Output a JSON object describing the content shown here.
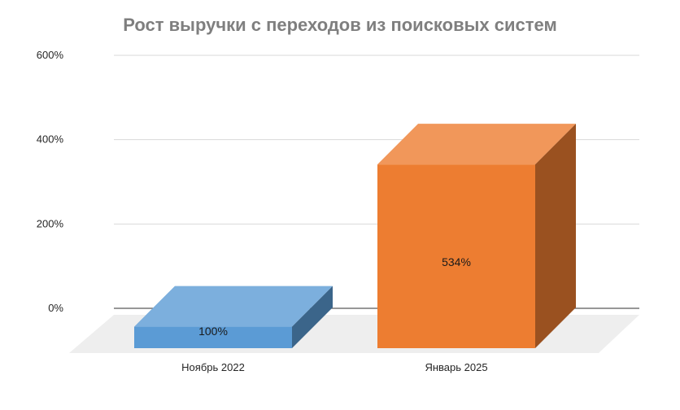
{
  "chart_data": {
    "type": "bar",
    "title": "Рост выручки с переходов из поисковых систем",
    "categories": [
      "Ноябрь 2022",
      "Январь 2025"
    ],
    "series": [
      {
        "values": [
          100,
          534
        ],
        "data_labels": [
          "100%",
          "534%"
        ]
      }
    ],
    "y_ticks": [
      "0%",
      "200%",
      "400%",
      "600%"
    ],
    "ylim": [
      0,
      600
    ],
    "bar_colors": [
      "#5b9bd5",
      "#ed7d31"
    ],
    "gridlines": true,
    "legend": "none",
    "style": "3d-column"
  }
}
